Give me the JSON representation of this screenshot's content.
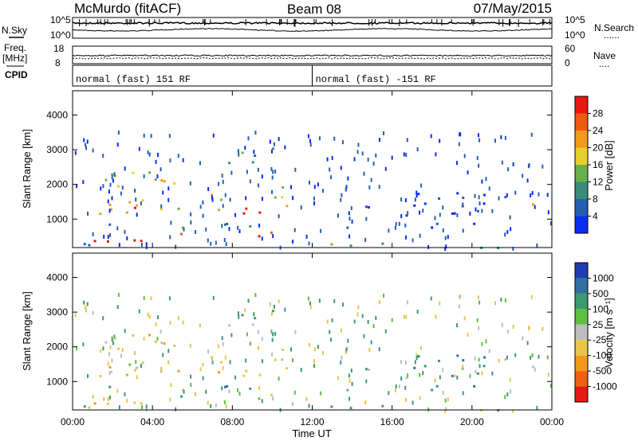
{
  "header": {
    "station": "McMurdo (fitACF)",
    "beam": "Beam 08",
    "date": "07/May/2015"
  },
  "side_labels": {
    "nsky": "N.Sky",
    "freq": "Freq.",
    "freq_unit": "[MHz]",
    "cpid": "CPID",
    "nsearch": "N.Search",
    "nave": "Nave",
    "dots": "......",
    "dots_short": "...."
  },
  "chart_data": {
    "type": "heatmap",
    "top_panels": {
      "noise": {
        "left_ticks": [
          "10^5",
          "10^0"
        ],
        "right_ticks": [
          "10^5",
          "10^0"
        ]
      },
      "freq_nave": {
        "left_ticks": [
          "18",
          "8"
        ],
        "right_ticks": [
          "60",
          "0"
        ]
      }
    },
    "cpid_segments": [
      {
        "label": "normal (fast) 151 RF",
        "start_hour": 0,
        "end_hour": 12
      },
      {
        "label": "normal (fast) -151 RF",
        "start_hour": 12,
        "end_hour": 24
      }
    ],
    "x": {
      "label": "Time UT",
      "range_hours": [
        0,
        24
      ],
      "tick_hours": [
        0,
        4,
        8,
        12,
        16,
        20,
        24
      ],
      "tick_labels": [
        "00:00",
        "04:00",
        "08:00",
        "12:00",
        "16:00",
        "20:00",
        "00:00"
      ]
    },
    "y": {
      "label": "Slant Range [km]",
      "range_km": [
        180,
        4700
      ],
      "ticks": [
        1000,
        2000,
        3000,
        4000
      ],
      "tick_labels": [
        "1000",
        "2000",
        "3000",
        "4000"
      ]
    },
    "power_panel": {
      "colorbar_title": "Power [dB]",
      "colorbar_ticks": [
        "4",
        "8",
        "12",
        "16",
        "20",
        "24",
        "28"
      ],
      "scale_min": 0,
      "scale_max": 32,
      "colors": [
        "#0b2cf2",
        "#245fb0",
        "#3a8c7a",
        "#6ab04a",
        "#e7d02a",
        "#f39a1a",
        "#f05a10",
        "#e81a10"
      ]
    },
    "velocity_panel": {
      "colorbar_title": "Velocity [m s⁻¹]",
      "colorbar_ticks": [
        "1000",
        "500",
        "100",
        "25",
        "-25",
        "-100",
        "-500",
        "-1000"
      ],
      "colors": [
        "#1f3cb0",
        "#3070a0",
        "#3a9a6e",
        "#5cc040",
        "#bdbdbd",
        "#e9c64a",
        "#f09a1c",
        "#f06010",
        "#e61a10"
      ]
    },
    "echo_regions": [
      {
        "t": [
          1.1,
          11.2
        ],
        "r": [
          1300,
          2400
        ],
        "level": 0.55,
        "velocity": -200
      },
      {
        "t": [
          1.0,
          11.0
        ],
        "r": [
          1150,
          1500
        ],
        "level": 0.82,
        "velocity": -300
      },
      {
        "t": [
          0.2,
          11.0
        ],
        "r": [
          300,
          650
        ],
        "level": 0.92,
        "velocity": -150
      },
      {
        "t": [
          0.1,
          10.9
        ],
        "r": [
          650,
          900
        ],
        "level": 0.3,
        "velocity": 100
      },
      {
        "t": [
          7.5,
          10.5
        ],
        "r": [
          2500,
          3200
        ],
        "level": 0.35,
        "velocity": 200
      },
      {
        "t": [
          12.5,
          22.0
        ],
        "r": [
          700,
          1800
        ],
        "level": 0.12,
        "velocity": 150
      },
      {
        "t": [
          22.2,
          23.9
        ],
        "r": [
          500,
          1500
        ],
        "level": 0.7,
        "velocity": 200
      },
      {
        "t": [
          0.0,
          24.0
        ],
        "r": [
          180,
          350
        ],
        "level": 0.25,
        "velocity": 30
      }
    ]
  }
}
